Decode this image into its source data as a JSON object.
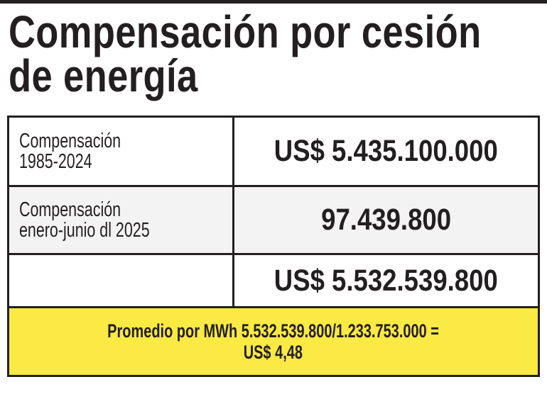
{
  "title": {
    "line1": "Compensación por cesión",
    "line2": "de energía"
  },
  "rows": [
    {
      "label_line1": "Compensación",
      "label_line2": "1985-2024",
      "value": "US$ 5.435.100.000"
    },
    {
      "label_line1": "Compensación",
      "label_line2": "enero-junio dl 2025",
      "value": "97.439.800"
    },
    {
      "label_line1": "",
      "label_line2": "",
      "value": "US$ 5.532.539.800"
    }
  ],
  "footer": {
    "line1": "Promedio por MWh  5.532.539.800/1.233.753.000 =",
    "line2": "US$ 4,48"
  },
  "colors": {
    "highlight": "#fbe944",
    "text": "#231f20"
  }
}
